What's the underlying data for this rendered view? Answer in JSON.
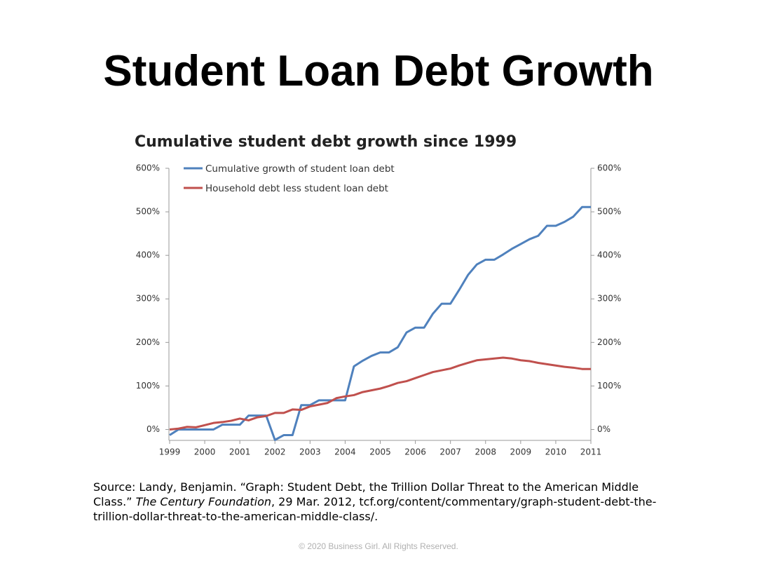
{
  "slide_title": "Student Loan Debt Growth",
  "source": {
    "before": "Source: Landy, Benjamin. “Graph: Student Debt, the Trillion Dollar Threat to the American Middle Class.” ",
    "italic": "The Century Foundation",
    "after": ", 29 Mar. 2012, tcf.org/content/commentary/graph-student-debt-the-trillion-dollar-threat-to-the-american-middle-class/."
  },
  "footer": "© 2020 Business Girl.  All Rights Reserved.",
  "chart_data": {
    "type": "line",
    "title": "Cumulative student debt growth since 1999",
    "x": [
      1999,
      1999.25,
      1999.5,
      1999.75,
      2000,
      2000.25,
      2000.5,
      2000.75,
      2001,
      2001.25,
      2001.5,
      2001.75,
      2002,
      2002.25,
      2002.5,
      2002.75,
      2003,
      2003.25,
      2003.5,
      2003.75,
      2004,
      2004.25,
      2004.5,
      2004.75,
      2005,
      2005.25,
      2005.5,
      2005.75,
      2006,
      2006.25,
      2006.5,
      2006.75,
      2007,
      2007.25,
      2007.5,
      2007.75,
      2008,
      2008.25,
      2008.5,
      2008.75,
      2009,
      2009.25,
      2009.5,
      2009.75,
      2010,
      2010.25,
      2010.5,
      2010.75,
      2011
    ],
    "series": [
      {
        "name": "Cumulative growth of student loan debt",
        "color": "#4f81bd",
        "values": [
          -13,
          0,
          0,
          0,
          0,
          0,
          11,
          11,
          11,
          32,
          32,
          32,
          -24,
          -13,
          -13,
          56,
          56,
          67,
          67,
          67,
          67,
          145,
          158,
          169,
          177,
          177,
          189,
          223,
          234,
          234,
          266,
          289,
          289,
          321,
          355,
          379,
          390,
          390,
          402,
          415,
          426,
          437,
          445,
          468,
          468,
          477,
          489,
          511,
          511
        ]
      },
      {
        "name": "Household debt less student loan debt",
        "color": "#c0504d",
        "values": [
          0,
          2,
          6,
          5,
          10,
          15,
          17,
          20,
          25,
          21,
          28,
          31,
          38,
          38,
          46,
          45,
          53,
          57,
          61,
          72,
          76,
          79,
          86,
          90,
          94,
          100,
          107,
          111,
          118,
          125,
          132,
          136,
          140,
          147,
          153,
          159,
          161,
          163,
          165,
          163,
          159,
          157,
          153,
          150,
          147,
          144,
          142,
          139,
          139
        ]
      }
    ],
    "xlim": [
      1999,
      2011
    ],
    "xticks": [
      1999,
      2000,
      2001,
      2002,
      2003,
      2004,
      2005,
      2006,
      2007,
      2008,
      2009,
      2010,
      2011
    ],
    "ylim": [
      -25,
      600
    ],
    "yticks": [
      {
        "value": 0,
        "label": "0%"
      },
      {
        "value": 100,
        "label": "100%"
      },
      {
        "value": 200,
        "label": "200%"
      },
      {
        "value": 300,
        "label": "300%"
      },
      {
        "value": 400,
        "label": "400%"
      },
      {
        "value": 500,
        "label": "500%"
      },
      {
        "value": 600,
        "label": "600%"
      }
    ],
    "y2lim": [
      -25,
      600
    ],
    "y2ticks": [
      {
        "value": 0,
        "label": "0%"
      },
      {
        "value": 100,
        "label": "100%"
      },
      {
        "value": 200,
        "label": "200%"
      },
      {
        "value": 300,
        "label": "300%"
      },
      {
        "value": 400,
        "label": "400%"
      },
      {
        "value": 500,
        "label": "500%"
      },
      {
        "value": 600,
        "label": "600%"
      }
    ],
    "legend": "top-left",
    "grid": false
  }
}
